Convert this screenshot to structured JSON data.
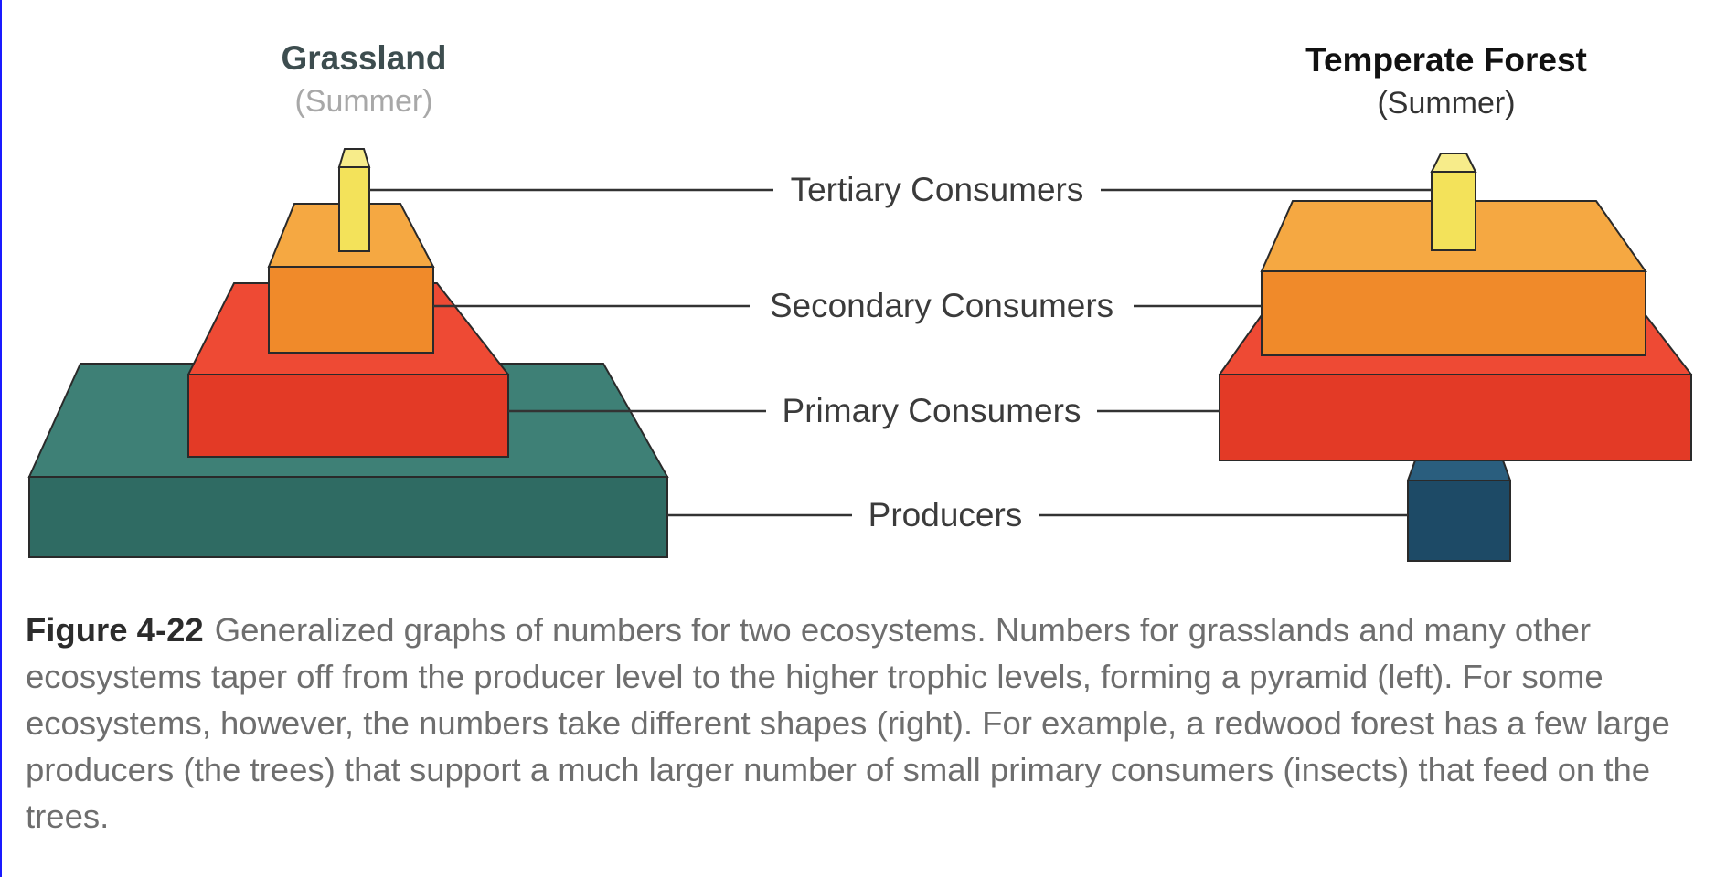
{
  "left_pyramid": {
    "title": "Grassland",
    "season": "(Summer)"
  },
  "right_pyramid": {
    "title": "Temperate Forest",
    "season": "(Summer)"
  },
  "levels": [
    {
      "label": "Tertiary Consumers",
      "color": "#f3e25a"
    },
    {
      "label": "Secondary Consumers",
      "color": "#f08a2a"
    },
    {
      "label": "Primary Consumers",
      "color": "#e33a26"
    },
    {
      "label": "Producers",
      "color": "#2f6b63"
    }
  ],
  "forest_producer_color": "#1d4a66",
  "caption": {
    "figure_number": "Figure 4-22",
    "text": "Generalized graphs of numbers for two ecosystems. Numbers for grasslands and many other ecosystems taper off from the producer level to the higher trophic levels, forming a pyramid (left). For some ecosystems, however, the numbers take different shapes (right). For example, a redwood forest has a few large producers (the trees) that support a much larger number of small primary consumers (insects) that feed on the trees."
  }
}
